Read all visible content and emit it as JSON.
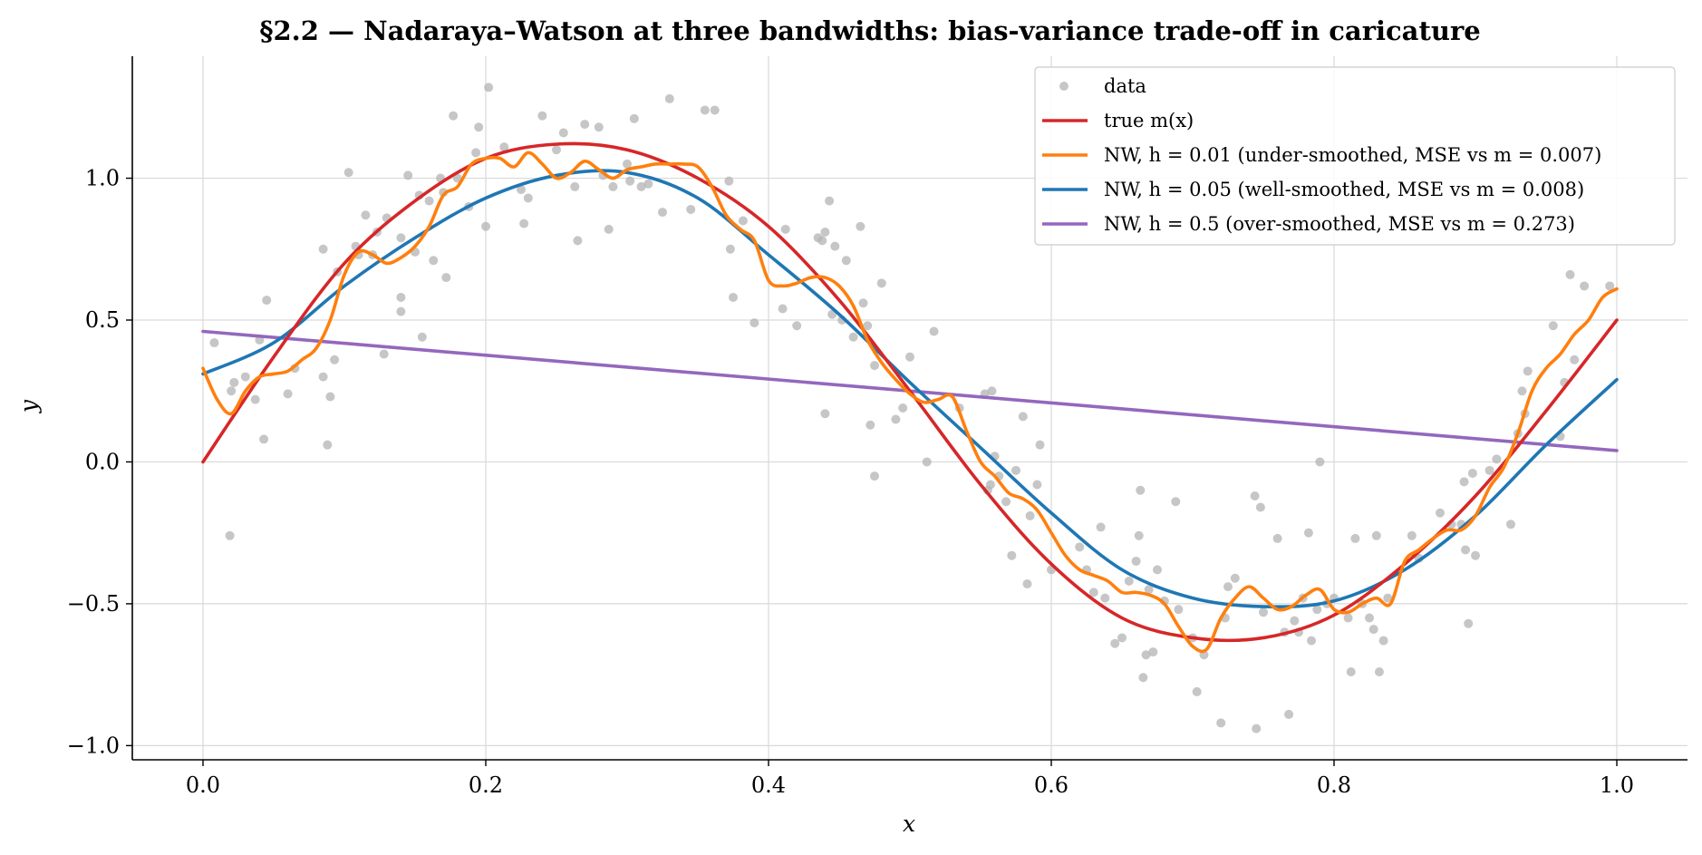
{
  "chart_data": {
    "type": "scatter",
    "title": "§2.2 — Nadaraya–Watson at three bandwidths: bias-variance trade-off in caricature",
    "xlabel": "x",
    "ylabel": "y",
    "xlim": [
      -0.05,
      1.05
    ],
    "ylim": [
      -1.05,
      1.43
    ],
    "xticks": [
      0.0,
      0.2,
      0.4,
      0.6,
      0.8,
      1.0
    ],
    "xtick_labels": [
      "0.0",
      "0.2",
      "0.4",
      "0.6",
      "0.8",
      "1.0"
    ],
    "yticks": [
      -1.0,
      -0.5,
      0.0,
      0.5,
      1.0
    ],
    "ytick_labels": [
      "−1.0",
      "−0.5",
      "0.0",
      "0.5",
      "1.0"
    ],
    "grid": true,
    "legend_position": "top-right",
    "colors": {
      "data": "#b3b3b3",
      "true": "#d62728",
      "h001": "#ff7f0e",
      "h005": "#1f77b4",
      "h05": "#9467bd"
    },
    "legend": [
      {
        "key": "data",
        "text": "data",
        "kind": "marker"
      },
      {
        "key": "true",
        "text": "true m(x)",
        "kind": "line"
      },
      {
        "key": "h001",
        "text": "NW, h = 0.01  (under-smoothed, MSE vs m = 0.007)",
        "kind": "line"
      },
      {
        "key": "h005",
        "text": "NW, h = 0.05  (well-smoothed, MSE vs m = 0.008)",
        "kind": "line"
      },
      {
        "key": "h05",
        "text": "NW, h = 0.5  (over-smoothed, MSE vs m = 0.273)",
        "kind": "line"
      }
    ],
    "scatter": [
      [
        0.008,
        0.42
      ],
      [
        0.019,
        -0.26
      ],
      [
        0.02,
        0.25
      ],
      [
        0.022,
        0.28
      ],
      [
        0.03,
        0.3
      ],
      [
        0.037,
        0.22
      ],
      [
        0.04,
        0.43
      ],
      [
        0.043,
        0.08
      ],
      [
        0.045,
        0.57
      ],
      [
        0.06,
        0.24
      ],
      [
        0.065,
        0.33
      ],
      [
        0.085,
        0.75
      ],
      [
        0.085,
        0.3
      ],
      [
        0.088,
        0.06
      ],
      [
        0.09,
        0.23
      ],
      [
        0.093,
        0.36
      ],
      [
        0.095,
        0.67
      ],
      [
        0.103,
        1.02
      ],
      [
        0.108,
        0.76
      ],
      [
        0.11,
        0.73
      ],
      [
        0.115,
        0.87
      ],
      [
        0.12,
        0.73
      ],
      [
        0.123,
        0.81
      ],
      [
        0.128,
        0.38
      ],
      [
        0.13,
        0.86
      ],
      [
        0.14,
        0.79
      ],
      [
        0.14,
        0.58
      ],
      [
        0.14,
        0.53
      ],
      [
        0.145,
        1.01
      ],
      [
        0.15,
        0.74
      ],
      [
        0.153,
        0.94
      ],
      [
        0.155,
        0.44
      ],
      [
        0.16,
        0.92
      ],
      [
        0.163,
        0.71
      ],
      [
        0.168,
        1.0
      ],
      [
        0.17,
        0.95
      ],
      [
        0.172,
        0.65
      ],
      [
        0.177,
        1.22
      ],
      [
        0.18,
        1.0
      ],
      [
        0.188,
        0.9
      ],
      [
        0.193,
        1.09
      ],
      [
        0.195,
        1.18
      ],
      [
        0.2,
        0.83
      ],
      [
        0.202,
        1.32
      ],
      [
        0.213,
        1.11
      ],
      [
        0.225,
        0.96
      ],
      [
        0.227,
        0.84
      ],
      [
        0.23,
        0.93
      ],
      [
        0.24,
        1.22
      ],
      [
        0.25,
        1.1
      ],
      [
        0.255,
        1.16
      ],
      [
        0.263,
        0.97
      ],
      [
        0.265,
        0.78
      ],
      [
        0.27,
        1.19
      ],
      [
        0.28,
        1.18
      ],
      [
        0.283,
        1.01
      ],
      [
        0.287,
        0.82
      ],
      [
        0.29,
        0.97
      ],
      [
        0.3,
        1.05
      ],
      [
        0.302,
        0.99
      ],
      [
        0.305,
        1.21
      ],
      [
        0.31,
        0.97
      ],
      [
        0.315,
        0.98
      ],
      [
        0.325,
        0.88
      ],
      [
        0.33,
        1.28
      ],
      [
        0.345,
        0.89
      ],
      [
        0.355,
        1.24
      ],
      [
        0.362,
        1.24
      ],
      [
        0.372,
        0.99
      ],
      [
        0.373,
        0.75
      ],
      [
        0.375,
        0.58
      ],
      [
        0.382,
        0.85
      ],
      [
        0.39,
        0.49
      ],
      [
        0.41,
        0.54
      ],
      [
        0.412,
        0.82
      ],
      [
        0.42,
        0.48
      ],
      [
        0.435,
        0.79
      ],
      [
        0.438,
        0.78
      ],
      [
        0.44,
        0.81
      ],
      [
        0.44,
        0.17
      ],
      [
        0.443,
        0.92
      ],
      [
        0.445,
        0.52
      ],
      [
        0.447,
        0.76
      ],
      [
        0.452,
        0.5
      ],
      [
        0.455,
        0.71
      ],
      [
        0.46,
        0.44
      ],
      [
        0.465,
        0.83
      ],
      [
        0.467,
        0.56
      ],
      [
        0.47,
        0.48
      ],
      [
        0.472,
        0.13
      ],
      [
        0.475,
        -0.05
      ],
      [
        0.475,
        0.34
      ],
      [
        0.48,
        0.63
      ],
      [
        0.49,
        0.15
      ],
      [
        0.495,
        0.19
      ],
      [
        0.5,
        0.37
      ],
      [
        0.512,
        0.0
      ],
      [
        0.517,
        0.46
      ],
      [
        0.535,
        0.19
      ],
      [
        0.553,
        0.24
      ],
      [
        0.555,
        -0.1
      ],
      [
        0.557,
        -0.08
      ],
      [
        0.558,
        0.25
      ],
      [
        0.56,
        0.02
      ],
      [
        0.563,
        -0.05
      ],
      [
        0.568,
        -0.14
      ],
      [
        0.572,
        -0.33
      ],
      [
        0.575,
        -0.03
      ],
      [
        0.58,
        0.16
      ],
      [
        0.583,
        -0.43
      ],
      [
        0.585,
        -0.19
      ],
      [
        0.59,
        -0.08
      ],
      [
        0.592,
        0.06
      ],
      [
        0.6,
        -0.38
      ],
      [
        0.62,
        -0.3
      ],
      [
        0.625,
        -0.38
      ],
      [
        0.63,
        -0.46
      ],
      [
        0.635,
        -0.23
      ],
      [
        0.638,
        -0.48
      ],
      [
        0.645,
        -0.64
      ],
      [
        0.65,
        -0.62
      ],
      [
        0.655,
        -0.42
      ],
      [
        0.66,
        -0.35
      ],
      [
        0.662,
        -0.26
      ],
      [
        0.663,
        -0.1
      ],
      [
        0.665,
        -0.76
      ],
      [
        0.667,
        -0.68
      ],
      [
        0.669,
        -0.45
      ],
      [
        0.672,
        -0.67
      ],
      [
        0.675,
        -0.38
      ],
      [
        0.68,
        -0.49
      ],
      [
        0.688,
        -0.14
      ],
      [
        0.69,
        -0.52
      ],
      [
        0.7,
        -0.62
      ],
      [
        0.703,
        -0.81
      ],
      [
        0.708,
        -0.68
      ],
      [
        0.72,
        -0.92
      ],
      [
        0.723,
        -0.55
      ],
      [
        0.725,
        -0.44
      ],
      [
        0.73,
        -0.41
      ],
      [
        0.744,
        -0.12
      ],
      [
        0.745,
        -0.94
      ],
      [
        0.748,
        -0.16
      ],
      [
        0.75,
        -0.53
      ],
      [
        0.76,
        -0.27
      ],
      [
        0.765,
        -0.6
      ],
      [
        0.768,
        -0.89
      ],
      [
        0.772,
        -0.56
      ],
      [
        0.775,
        -0.6
      ],
      [
        0.778,
        -0.48
      ],
      [
        0.782,
        -0.25
      ],
      [
        0.784,
        -0.63
      ],
      [
        0.788,
        -0.52
      ],
      [
        0.79,
        0.0
      ],
      [
        0.795,
        -0.5
      ],
      [
        0.8,
        -0.48
      ],
      [
        0.81,
        -0.55
      ],
      [
        0.812,
        -0.74
      ],
      [
        0.815,
        -0.27
      ],
      [
        0.82,
        -0.5
      ],
      [
        0.825,
        -0.55
      ],
      [
        0.828,
        -0.59
      ],
      [
        0.83,
        -0.26
      ],
      [
        0.832,
        -0.74
      ],
      [
        0.835,
        -0.63
      ],
      [
        0.838,
        -0.48
      ],
      [
        0.855,
        -0.26
      ],
      [
        0.86,
        -0.34
      ],
      [
        0.875,
        -0.18
      ],
      [
        0.883,
        -0.22
      ],
      [
        0.89,
        -0.22
      ],
      [
        0.892,
        -0.07
      ],
      [
        0.893,
        -0.31
      ],
      [
        0.895,
        -0.57
      ],
      [
        0.898,
        -0.04
      ],
      [
        0.9,
        -0.33
      ],
      [
        0.91,
        -0.03
      ],
      [
        0.915,
        0.01
      ],
      [
        0.925,
        -0.22
      ],
      [
        0.93,
        0.1
      ],
      [
        0.933,
        0.25
      ],
      [
        0.935,
        0.17
      ],
      [
        0.937,
        0.32
      ],
      [
        0.955,
        0.48
      ],
      [
        0.96,
        0.09
      ],
      [
        0.963,
        0.28
      ],
      [
        0.967,
        0.66
      ],
      [
        0.97,
        0.36
      ],
      [
        0.977,
        0.62
      ],
      [
        0.995,
        0.62
      ]
    ],
    "series": [
      {
        "key": "true",
        "name": "true m(x)",
        "x": [
          0,
          0.05,
          0.1,
          0.15,
          0.2,
          0.25,
          0.3,
          0.35,
          0.4,
          0.45,
          0.5,
          0.55,
          0.6,
          0.65,
          0.7,
          0.75,
          0.8,
          0.85,
          0.9,
          0.95,
          1.0
        ],
        "y": [
          0.0,
          0.37,
          0.7,
          0.92,
          1.07,
          1.12,
          1.1,
          1.0,
          0.83,
          0.57,
          0.25,
          -0.08,
          -0.36,
          -0.55,
          -0.62,
          -0.62,
          -0.54,
          -0.36,
          -0.12,
          0.18,
          0.5
        ]
      },
      {
        "key": "h001",
        "name": "NW, h = 0.01",
        "x": [
          0,
          0.01,
          0.02,
          0.03,
          0.04,
          0.05,
          0.06,
          0.07,
          0.08,
          0.09,
          0.1,
          0.11,
          0.12,
          0.13,
          0.14,
          0.15,
          0.16,
          0.17,
          0.18,
          0.19,
          0.2,
          0.21,
          0.22,
          0.23,
          0.24,
          0.25,
          0.26,
          0.27,
          0.28,
          0.29,
          0.3,
          0.31,
          0.32,
          0.33,
          0.34,
          0.35,
          0.36,
          0.37,
          0.38,
          0.39,
          0.4,
          0.41,
          0.42,
          0.43,
          0.44,
          0.45,
          0.46,
          0.47,
          0.48,
          0.49,
          0.5,
          0.51,
          0.52,
          0.53,
          0.54,
          0.55,
          0.56,
          0.57,
          0.58,
          0.59,
          0.6,
          0.61,
          0.62,
          0.63,
          0.64,
          0.65,
          0.66,
          0.67,
          0.68,
          0.69,
          0.7,
          0.71,
          0.72,
          0.73,
          0.74,
          0.75,
          0.76,
          0.77,
          0.78,
          0.79,
          0.8,
          0.81,
          0.82,
          0.83,
          0.84,
          0.85,
          0.86,
          0.87,
          0.88,
          0.89,
          0.9,
          0.91,
          0.92,
          0.93,
          0.94,
          0.95,
          0.96,
          0.97,
          0.98,
          0.99,
          1.0
        ],
        "y": [
          0.33,
          0.22,
          0.17,
          0.25,
          0.3,
          0.31,
          0.32,
          0.36,
          0.4,
          0.5,
          0.66,
          0.74,
          0.73,
          0.7,
          0.72,
          0.76,
          0.83,
          0.94,
          0.97,
          1.05,
          1.07,
          1.07,
          1.04,
          1.09,
          1.05,
          1.0,
          1.02,
          1.06,
          1.03,
          1.0,
          1.03,
          1.04,
          1.05,
          1.05,
          1.05,
          1.04,
          0.97,
          0.87,
          0.82,
          0.78,
          0.64,
          0.62,
          0.63,
          0.65,
          0.65,
          0.62,
          0.55,
          0.43,
          0.35,
          0.29,
          0.24,
          0.21,
          0.22,
          0.23,
          0.11,
          0.0,
          -0.05,
          -0.11,
          -0.13,
          -0.17,
          -0.25,
          -0.33,
          -0.38,
          -0.4,
          -0.42,
          -0.46,
          -0.46,
          -0.47,
          -0.5,
          -0.58,
          -0.65,
          -0.66,
          -0.55,
          -0.48,
          -0.44,
          -0.48,
          -0.52,
          -0.51,
          -0.47,
          -0.45,
          -0.52,
          -0.53,
          -0.5,
          -0.48,
          -0.5,
          -0.35,
          -0.31,
          -0.27,
          -0.24,
          -0.24,
          -0.19,
          -0.09,
          -0.02,
          0.1,
          0.25,
          0.33,
          0.38,
          0.45,
          0.5,
          0.58,
          0.61
        ]
      },
      {
        "key": "h005",
        "name": "NW, h = 0.05",
        "x": [
          0,
          0.05,
          0.1,
          0.15,
          0.2,
          0.25,
          0.3,
          0.35,
          0.4,
          0.45,
          0.5,
          0.55,
          0.6,
          0.65,
          0.7,
          0.75,
          0.8,
          0.85,
          0.9,
          0.95,
          1.0
        ],
        "y": [
          0.31,
          0.42,
          0.62,
          0.79,
          0.93,
          1.01,
          1.02,
          0.93,
          0.73,
          0.52,
          0.28,
          0.05,
          -0.18,
          -0.38,
          -0.48,
          -0.51,
          -0.49,
          -0.38,
          -0.19,
          0.06,
          0.29
        ]
      },
      {
        "key": "h05",
        "name": "NW, h = 0.5",
        "x": [
          0,
          1.0
        ],
        "y": [
          0.46,
          0.04
        ]
      }
    ]
  }
}
